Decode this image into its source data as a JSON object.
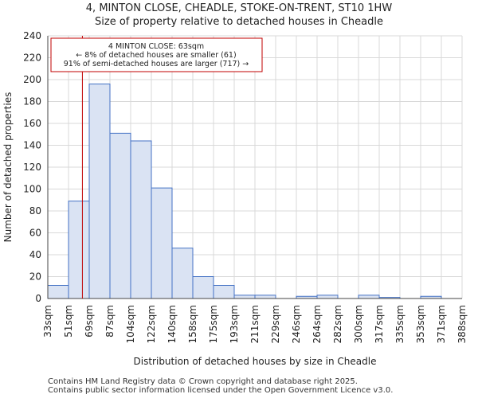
{
  "chart_data": {
    "type": "bar",
    "title_line1": "4, MINTON CLOSE, CHEADLE, STOKE-ON-TRENT, ST10 1HW",
    "title_line2": "Size of property relative to detached houses in Cheadle",
    "xlabel": "Distribution of detached houses by size in Cheadle",
    "ylabel": "Number of detached properties",
    "tick_labels": [
      "33sqm",
      "51sqm",
      "69sqm",
      "87sqm",
      "104sqm",
      "122sqm",
      "140sqm",
      "158sqm",
      "175sqm",
      "193sqm",
      "211sqm",
      "229sqm",
      "246sqm",
      "264sqm",
      "282sqm",
      "300sqm",
      "317sqm",
      "335sqm",
      "353sqm",
      "371sqm",
      "388sqm"
    ],
    "values": [
      12,
      89,
      196,
      151,
      144,
      101,
      46,
      20,
      12,
      3,
      3,
      0,
      2,
      3,
      0,
      3,
      1,
      0,
      2,
      0
    ],
    "ylim": [
      0,
      240
    ],
    "yticks": [
      0,
      20,
      40,
      60,
      80,
      100,
      120,
      140,
      160,
      180,
      200,
      220,
      240
    ],
    "grid": true,
    "bar_color": "#dae3f3",
    "bar_edge_color": "#4472c4",
    "marker": {
      "bin_position": 1.67,
      "color": "#c00000",
      "label": "4 MINTON CLOSE: 63sqm"
    },
    "annotation": {
      "line1": "4 MINTON CLOSE: 63sqm",
      "line2": "← 8% of detached houses are smaller (61)",
      "line3": "91% of semi-detached houses are larger (717) →"
    }
  },
  "footer": {
    "line1": "Contains HM Land Registry data © Crown copyright and database right 2025.",
    "line2": "Contains public sector information licensed under the Open Government Licence v3.0."
  }
}
